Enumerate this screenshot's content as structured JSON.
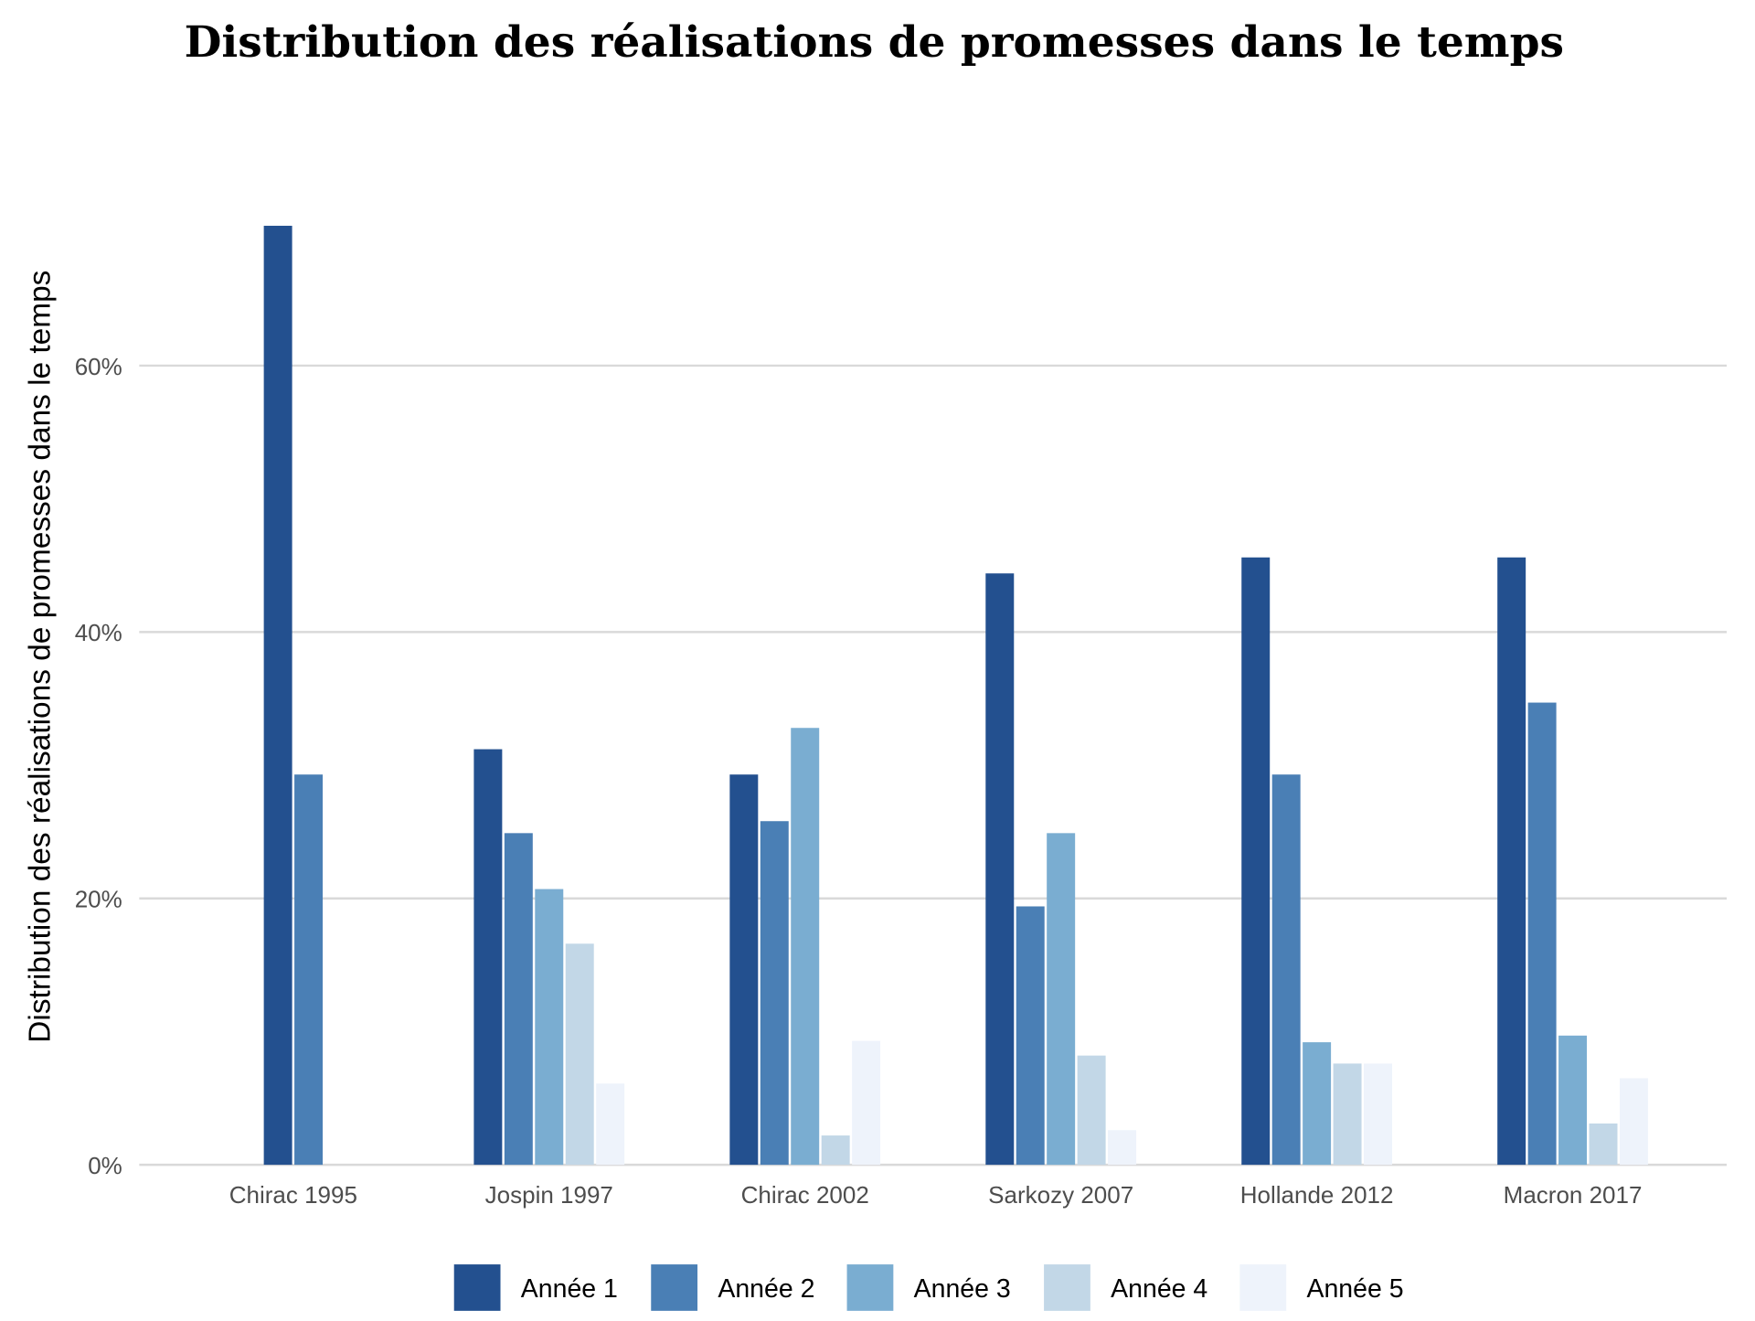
{
  "chart_data": {
    "type": "bar",
    "title": "Distribution des réalisations de promesses dans le temps",
    "xlabel": "",
    "ylabel": "Distribution des réalisations de promesses dans le temps",
    "ylim": [
      0,
      72
    ],
    "yticks": [
      0,
      20,
      40,
      60
    ],
    "ytick_labels": [
      "0%",
      "20%",
      "40%",
      "60%"
    ],
    "grid": "horizontal",
    "legend_position": "bottom",
    "categories": [
      "Chirac 1995",
      "Jospin 1997",
      "Chirac 2002",
      "Sarkozy 2007",
      "Hollande 2012",
      "Macron 2017"
    ],
    "series": [
      {
        "name": "Année 1",
        "color": "#23508f",
        "values": [
          70.5,
          31.2,
          29.3,
          44.4,
          45.6,
          45.6
        ]
      },
      {
        "name": "Année 2",
        "color": "#4a7fb5",
        "values": [
          29.3,
          24.9,
          25.8,
          19.4,
          29.3,
          34.7
        ]
      },
      {
        "name": "Année 3",
        "color": "#7aadd1",
        "values": [
          null,
          20.7,
          32.8,
          24.9,
          9.2,
          9.7
        ]
      },
      {
        "name": "Année 4",
        "color": "#c2d7e7",
        "values": [
          null,
          16.6,
          2.2,
          8.2,
          7.6,
          3.1
        ]
      },
      {
        "name": "Année 5",
        "color": "#eef3fb",
        "values": [
          null,
          6.1,
          9.3,
          2.6,
          7.6,
          6.5
        ]
      }
    ]
  }
}
